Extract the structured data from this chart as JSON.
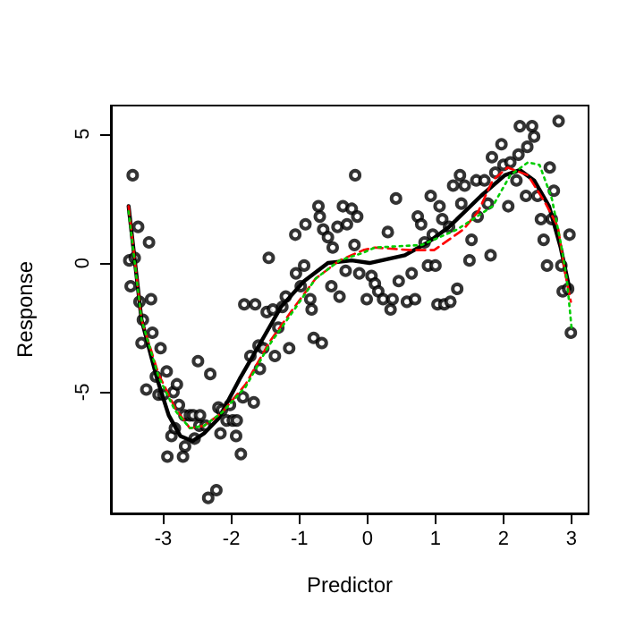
{
  "chart_data": {
    "type": "scatter",
    "xlabel": "Predictor",
    "ylabel": "Response",
    "xlim": [
      -3.77,
      3.25
    ],
    "ylim": [
      -9.7,
      6.1
    ],
    "xticks": [
      -3,
      -2,
      -1,
      0,
      1,
      2,
      3
    ],
    "yticks": [
      -5,
      0,
      5
    ],
    "grid": false,
    "series": [
      {
        "color": "#000000",
        "marker": "circle",
        "x": [
          -3.45,
          -3.5,
          -3.42,
          -3.37,
          -3.48,
          -3.21,
          -3.35,
          -3.18,
          -3.3,
          -3.32,
          -3.16,
          -3.04,
          -3.11,
          -2.95,
          -3.25,
          -3.07,
          -3.0,
          -2.85,
          -2.8,
          -2.77,
          -2.94,
          -2.88,
          -2.83,
          -2.71,
          -2.68,
          -2.69,
          -2.61,
          -2.56,
          -2.49,
          -2.46,
          -2.54,
          -2.47,
          -2.38,
          -2.31,
          -2.19,
          -2.16,
          -2.34,
          -2.22,
          -2.14,
          -2.07,
          -2.02,
          -1.98,
          -1.93,
          -1.92,
          -1.86,
          -1.83,
          -1.81,
          -1.65,
          -1.67,
          -1.72,
          -1.58,
          -1.6,
          -1.53,
          -1.48,
          -1.45,
          -1.39,
          -1.36,
          -1.31,
          -1.25,
          -1.15,
          -1.2,
          -1.06,
          -1.05,
          -0.98,
          -0.93,
          -0.91,
          -0.84,
          -0.82,
          -0.79,
          -0.67,
          -0.72,
          -0.7,
          -0.65,
          -0.58,
          -0.51,
          -0.44,
          -0.53,
          -0.41,
          -0.36,
          -0.3,
          -0.23,
          -0.15,
          -0.18,
          -0.19,
          -0.32,
          -0.12,
          -0.01,
          0.06,
          0.11,
          0.16,
          0.23,
          0.3,
          0.34,
          0.37,
          0.42,
          0.46,
          0.58,
          0.65,
          0.7,
          0.74,
          0.79,
          0.84,
          0.89,
          0.93,
          0.96,
          1.0,
          1.03,
          1.06,
          1.13,
          1.1,
          1.2,
          1.22,
          1.26,
          1.32,
          1.36,
          1.38,
          1.43,
          1.5,
          1.53,
          1.6,
          1.62,
          1.72,
          1.77,
          1.81,
          1.83,
          1.88,
          1.97,
          2.0,
          2.07,
          2.1,
          2.19,
          2.22,
          2.24,
          2.33,
          2.35,
          2.42,
          2.45,
          2.5,
          2.55,
          2.59,
          2.64,
          2.68,
          2.71,
          2.74,
          2.81,
          2.85,
          2.87,
          2.95,
          2.97,
          2.99
        ],
        "values": [
          3.4,
          0.1,
          0.2,
          1.4,
          -0.9,
          0.8,
          -1.5,
          -1.4,
          -2.2,
          -3.1,
          -2.7,
          -3.3,
          -4.4,
          -4.2,
          -4.9,
          -5.1,
          -5.1,
          -5.0,
          -4.7,
          -5.5,
          -7.5,
          -6.7,
          -6.4,
          -7.5,
          -7.1,
          -5.9,
          -5.9,
          -5.9,
          -3.8,
          -5.9,
          -6.8,
          -6.3,
          -6.3,
          -4.3,
          -5.6,
          -6.6,
          -9.1,
          -8.8,
          -5.7,
          -6.1,
          -5.5,
          -6.1,
          -6.7,
          -6.1,
          -7.4,
          -5.2,
          -1.6,
          -1.6,
          -5.4,
          -3.6,
          -4.1,
          -3.2,
          -3.3,
          -1.9,
          0.2,
          -1.8,
          -3.6,
          -2.5,
          -1.7,
          -3.3,
          -1.3,
          1.1,
          -0.4,
          -0.9,
          -0.1,
          1.5,
          -1.4,
          -1.8,
          -2.9,
          -3.1,
          2.2,
          1.8,
          1.3,
          1.0,
          0.6,
          1.4,
          -0.9,
          -1.3,
          2.2,
          1.5,
          2.1,
          1.8,
          3.4,
          0.7,
          -0.3,
          -0.4,
          -1.4,
          -0.5,
          -0.8,
          -1.1,
          -1.4,
          1.2,
          -1.8,
          -1.4,
          2.5,
          -0.7,
          -1.5,
          -0.4,
          -1.4,
          1.8,
          1.5,
          0.8,
          -0.1,
          2.6,
          1.1,
          -0.1,
          -1.6,
          2.2,
          -1.6,
          1.7,
          1.4,
          -1.5,
          3.0,
          -1.0,
          3.4,
          2.3,
          3.0,
          0.1,
          0.9,
          3.2,
          1.8,
          3.2,
          2.3,
          0.3,
          4.1,
          3.5,
          4.6,
          3.8,
          2.2,
          3.9,
          3.2,
          4.2,
          5.3,
          2.6,
          4.5,
          5.3,
          4.9,
          2.6,
          1.7,
          0.9,
          -0.1,
          3.7,
          1.7,
          2.8,
          5.5,
          -0.1,
          -1.1,
          -1.0,
          1.1,
          -2.7
        ]
      },
      {
        "type": "line",
        "color": "#000000",
        "line_style": "solid",
        "marker": "none",
        "x": [
          -3.51,
          -3.32,
          -3.09,
          -2.92,
          -2.75,
          -2.57,
          -2.4,
          -2.18,
          -1.88,
          -1.53,
          -1.27,
          -0.93,
          -0.58,
          -0.23,
          0.03,
          0.55,
          0.89,
          1.2,
          1.67,
          2.02,
          2.24,
          2.45,
          2.67,
          2.84,
          2.97
        ],
        "values": [
          2.2,
          -2.2,
          -4.5,
          -5.9,
          -6.7,
          -6.9,
          -6.6,
          -6.0,
          -4.5,
          -2.9,
          -1.7,
          -0.7,
          0.0,
          0.1,
          0.0,
          0.3,
          0.8,
          1.4,
          2.6,
          3.4,
          3.6,
          3.2,
          2.2,
          0.6,
          -1.0
        ]
      },
      {
        "type": "line",
        "color": "#ff0000",
        "line_style": "dashed",
        "marker": "none",
        "x": [
          -3.51,
          -3.32,
          -3.07,
          -2.83,
          -2.61,
          -2.4,
          -2.14,
          -1.79,
          -1.45,
          -1.1,
          -0.76,
          -0.41,
          -0.06,
          0.11,
          0.63,
          0.98,
          1.41,
          1.63,
          1.84,
          2.06,
          2.36,
          2.62,
          2.8,
          2.9,
          2.99
        ],
        "values": [
          2.2,
          -2.2,
          -4.3,
          -5.6,
          -6.4,
          -6.3,
          -5.8,
          -4.7,
          -3.1,
          -1.8,
          -0.6,
          0.1,
          0.5,
          0.6,
          0.5,
          0.5,
          1.3,
          2.0,
          3.2,
          3.7,
          3.4,
          2.3,
          1.4,
          -0.3,
          -1.5
        ]
      },
      {
        "type": "line",
        "color": "#00cd00",
        "line_style": "dotted",
        "marker": "none",
        "x": [
          -3.51,
          -3.32,
          -3.07,
          -2.83,
          -2.61,
          -2.4,
          -2.14,
          -1.79,
          -1.45,
          -1.1,
          -0.76,
          -0.41,
          -0.06,
          0.11,
          0.8,
          1.32,
          1.84,
          2.1,
          2.36,
          2.53,
          2.71,
          2.84,
          2.93,
          3.0
        ],
        "values": [
          2.0,
          -2.2,
          -4.4,
          -5.7,
          -6.4,
          -6.3,
          -5.8,
          -4.8,
          -3.2,
          -1.9,
          -0.6,
          0.1,
          0.4,
          0.6,
          0.7,
          1.3,
          2.2,
          3.4,
          3.9,
          3.8,
          2.5,
          0.8,
          -0.6,
          -2.5
        ]
      }
    ]
  }
}
